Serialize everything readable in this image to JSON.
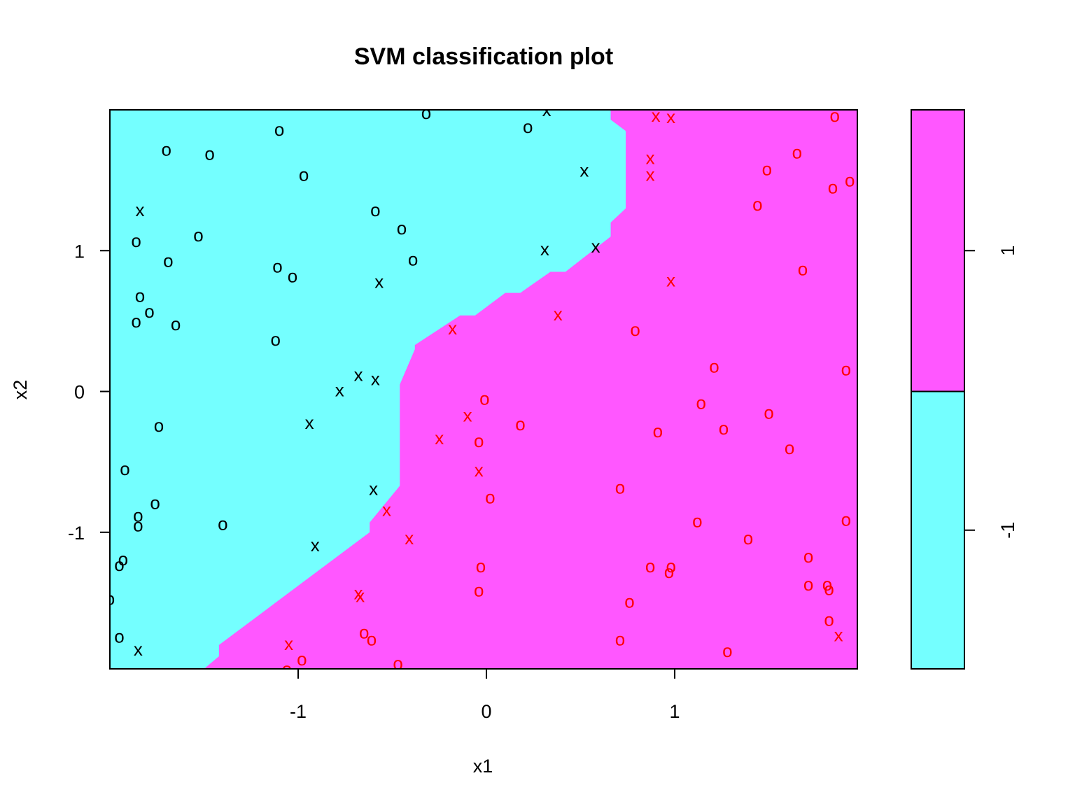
{
  "chart_data": {
    "type": "scatter",
    "title": "SVM classification plot",
    "xlabel": "x1",
    "ylabel": "x2",
    "xlim": [
      -2,
      1.97
    ],
    "ylim": [
      -1.97,
      2.0
    ],
    "x_ticks": [
      -1,
      0,
      1
    ],
    "y_ticks": [
      -1,
      0,
      1
    ],
    "x_tick_labels": [
      "-1",
      "0",
      "1"
    ],
    "y_tick_labels": [
      "-1",
      "0",
      "1"
    ],
    "colors": {
      "class_neg": "#74ffff",
      "class_pos": "#ff57ff",
      "predicted_pos": "#ff0000",
      "predicted_neg": "#000000"
    },
    "decision_boundary": [
      [
        -1.5,
        -1.97
      ],
      [
        -1.42,
        -1.88
      ],
      [
        -1.42,
        -1.8
      ],
      [
        -0.62,
        -1.0
      ],
      [
        -0.62,
        -0.93
      ],
      [
        -0.46,
        -0.67
      ],
      [
        -0.46,
        0.05
      ],
      [
        -0.38,
        0.3
      ],
      [
        -0.38,
        0.33
      ],
      [
        -0.14,
        0.54
      ],
      [
        -0.06,
        0.54
      ],
      [
        0.1,
        0.7
      ],
      [
        0.18,
        0.7
      ],
      [
        0.34,
        0.85
      ],
      [
        0.42,
        0.85
      ],
      [
        0.66,
        1.1
      ],
      [
        0.66,
        1.2
      ],
      [
        0.74,
        1.3
      ],
      [
        0.74,
        1.85
      ],
      [
        0.66,
        1.93
      ],
      [
        0.66,
        2.0
      ]
    ],
    "legend": {
      "labels": [
        "1",
        "-1"
      ],
      "split": 0.0,
      "range": [
        -1.97,
        2.0
      ]
    },
    "series": [
      {
        "marker": "o",
        "points": [
          [
            -0.32,
            1.98
          ],
          [
            0.22,
            1.88
          ],
          [
            -1.1,
            1.86
          ],
          [
            -1.7,
            1.72
          ],
          [
            -1.47,
            1.69
          ],
          [
            -0.97,
            1.54
          ],
          [
            -0.59,
            1.29
          ],
          [
            -0.45,
            1.16
          ],
          [
            -1.53,
            1.11
          ],
          [
            -1.86,
            1.07
          ],
          [
            -1.69,
            0.93
          ],
          [
            -1.11,
            0.89
          ],
          [
            -0.39,
            0.94
          ],
          [
            -1.03,
            0.82
          ],
          [
            -1.84,
            0.68
          ],
          [
            -1.79,
            0.57
          ],
          [
            -1.86,
            0.5
          ],
          [
            -1.65,
            0.48
          ],
          [
            -1.12,
            0.37
          ],
          [
            -0.01,
            -0.05
          ],
          [
            -1.74,
            -0.24
          ],
          [
            -1.92,
            -0.55
          ],
          [
            -1.76,
            -0.79
          ],
          [
            -1.85,
            -0.88
          ],
          [
            -1.85,
            -0.95
          ],
          [
            -1.4,
            -0.94
          ],
          [
            -1.93,
            -1.19
          ],
          [
            -1.95,
            -1.23
          ],
          [
            -2.0,
            -1.47
          ],
          [
            -1.95,
            -1.74
          ],
          [
            1.85,
            1.96
          ],
          [
            1.65,
            1.7
          ],
          [
            1.49,
            1.58
          ],
          [
            1.84,
            1.45
          ],
          [
            1.93,
            1.5
          ],
          [
            1.44,
            1.33
          ],
          [
            1.99,
            1.21
          ],
          [
            1.68,
            0.87
          ],
          [
            0.79,
            0.44
          ],
          [
            1.21,
            0.18
          ],
          [
            1.91,
            0.16
          ],
          [
            1.14,
            -0.08
          ],
          [
            1.5,
            -0.15
          ],
          [
            0.18,
            -0.23
          ],
          [
            0.91,
            -0.28
          ],
          [
            1.26,
            -0.26
          ],
          [
            -0.04,
            -0.35
          ],
          [
            1.61,
            -0.4
          ],
          [
            0.71,
            -0.68
          ],
          [
            0.02,
            -0.75
          ],
          [
            1.91,
            -0.91
          ],
          [
            1.12,
            -0.92
          ],
          [
            1.39,
            -1.04
          ],
          [
            1.71,
            -1.17
          ],
          [
            0.87,
            -1.24
          ],
          [
            0.98,
            -1.24
          ],
          [
            0.97,
            -1.28
          ],
          [
            -0.03,
            -1.24
          ],
          [
            1.71,
            -1.37
          ],
          [
            1.81,
            -1.37
          ],
          [
            1.82,
            -1.4
          ],
          [
            -0.04,
            -1.41
          ],
          [
            0.76,
            -1.49
          ],
          [
            1.82,
            -1.62
          ],
          [
            -0.65,
            -1.71
          ],
          [
            -0.61,
            -1.76
          ],
          [
            0.71,
            -1.76
          ],
          [
            1.28,
            -1.84
          ],
          [
            -0.98,
            -1.9
          ],
          [
            -0.47,
            -1.93
          ],
          [
            -1.06,
            -1.97
          ]
        ]
      },
      {
        "marker": "x",
        "points": [
          [
            0.32,
            2.0
          ],
          [
            0.52,
            1.57
          ],
          [
            0.87,
            1.54
          ],
          [
            -1.84,
            1.29
          ],
          [
            0.58,
            1.03
          ],
          [
            -0.57,
            0.78
          ],
          [
            -0.18,
            0.45
          ],
          [
            -0.78,
            0.01
          ],
          [
            -0.94,
            -0.22
          ],
          [
            -0.1,
            -0.17
          ],
          [
            -0.53,
            -0.84
          ],
          [
            -0.41,
            -1.04
          ],
          [
            -0.91,
            -1.09
          ],
          [
            -1.85,
            -1.83
          ],
          [
            0.9,
            1.96
          ],
          [
            0.98,
            1.95
          ],
          [
            0.87,
            1.66
          ],
          [
            0.31,
            1.01
          ],
          [
            0.98,
            0.79
          ],
          [
            0.38,
            0.55
          ],
          [
            -0.68,
            0.12
          ],
          [
            -0.59,
            0.09
          ],
          [
            -0.25,
            -0.33
          ],
          [
            -0.04,
            -0.56
          ],
          [
            -0.6,
            -0.69
          ],
          [
            -0.68,
            -1.43
          ],
          [
            -0.67,
            -1.45
          ],
          [
            -1.05,
            -1.79
          ],
          [
            1.87,
            -1.73
          ]
        ]
      }
    ]
  }
}
